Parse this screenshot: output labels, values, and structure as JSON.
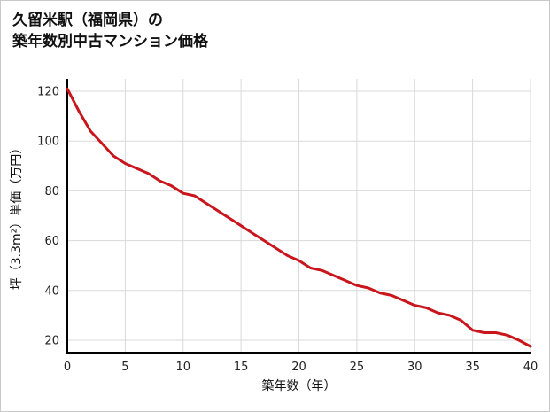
{
  "title": {
    "line1": "久留米駅（福岡県）の",
    "line2": "築年数別中古マンション価格"
  },
  "chart_data": {
    "type": "line",
    "title": "久留米駅（福岡県）の築年数別中古マンション価格",
    "xlabel": "築年数（年）",
    "ylabel": "坪（3.3m²）単価（万円）",
    "xlim": [
      0,
      40
    ],
    "ylim": [
      15,
      125
    ],
    "xticks": [
      0,
      5,
      10,
      15,
      20,
      25,
      30,
      35,
      40
    ],
    "yticks": [
      20,
      40,
      60,
      80,
      100,
      120
    ],
    "grid": true,
    "legend": "none",
    "x": [
      0,
      1,
      2,
      3,
      4,
      5,
      6,
      7,
      8,
      9,
      10,
      11,
      12,
      13,
      14,
      15,
      16,
      17,
      18,
      19,
      20,
      21,
      22,
      23,
      24,
      25,
      26,
      27,
      28,
      29,
      30,
      31,
      32,
      33,
      34,
      35,
      36,
      37,
      38,
      39,
      40
    ],
    "series": [
      {
        "name": "坪単価（万円）",
        "values": [
          121,
          112,
          104,
          99,
          94,
          91,
          89,
          87,
          84,
          82,
          79,
          78,
          75,
          72,
          69,
          66,
          63,
          60,
          57,
          54,
          52,
          49,
          48,
          46,
          44,
          42,
          41,
          39,
          38,
          36,
          34,
          33,
          31,
          30,
          28,
          24,
          23,
          23,
          22,
          20,
          17.5
        ]
      }
    ],
    "colors": {
      "line": "#c9161d",
      "grid": "#d9d9d9",
      "axis": "#000000",
      "text": "#222222"
    }
  }
}
